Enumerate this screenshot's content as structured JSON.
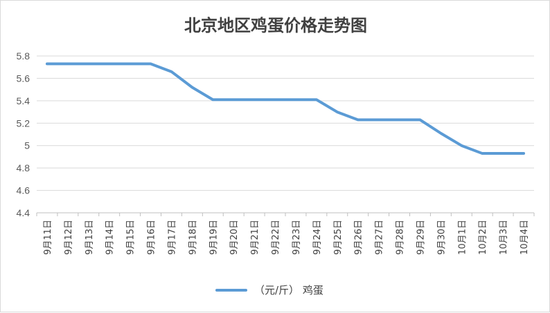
{
  "chart_data": {
    "type": "line",
    "title": "北京地区鸡蛋价格走势图",
    "xlabel": "",
    "ylabel": "",
    "x": [
      "9月11日",
      "9月12日",
      "9月13日",
      "9月14日",
      "9月15日",
      "9月16日",
      "9月17日",
      "9月18日",
      "9月19日",
      "9月20日",
      "9月21日",
      "9月22日",
      "9月23日",
      "9月24日",
      "9月25日",
      "9月26日",
      "9月27日",
      "9月28日",
      "9月29日",
      "9月30日",
      "10月1日",
      "10月2日",
      "10月3日",
      "10月4日"
    ],
    "y_ticks": [
      "5.8",
      "5.6",
      "5.4",
      "5.2",
      "5",
      "4.8",
      "4.6",
      "4.4"
    ],
    "ylim": [
      4.4,
      5.8
    ],
    "grid": true,
    "legend_position": "bottom",
    "series": [
      {
        "name": "（元/斤） 鸡蛋",
        "color": "#5b9bd5",
        "values": [
          5.73,
          5.73,
          5.73,
          5.73,
          5.73,
          5.73,
          5.66,
          5.52,
          5.41,
          5.41,
          5.41,
          5.41,
          5.41,
          5.41,
          5.3,
          5.23,
          5.23,
          5.23,
          5.23,
          5.11,
          5.0,
          4.93,
          4.93,
          4.93
        ]
      }
    ]
  }
}
